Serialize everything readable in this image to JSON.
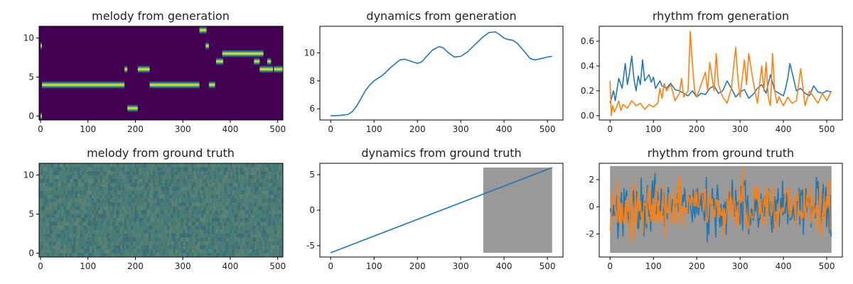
{
  "chart_data": [
    {
      "id": "melody-gen",
      "type": "heatmap",
      "title": "melody from generation",
      "xlim": [
        -3,
        511
      ],
      "ylim": [
        -0.5,
        11.5
      ],
      "xticks": [
        0,
        100,
        200,
        300,
        400,
        500
      ],
      "yticks": [
        0,
        5,
        10
      ],
      "background": "#440154",
      "note_color": "#fde725",
      "notes": [
        {
          "x0": 0,
          "x1": 3,
          "pitch": 0
        },
        {
          "x0": 0,
          "x1": 3,
          "pitch": 9
        },
        {
          "x0": 3,
          "x1": 177,
          "pitch": 4
        },
        {
          "x0": 177,
          "x1": 183,
          "pitch": 6
        },
        {
          "x0": 183,
          "x1": 205,
          "pitch": 1
        },
        {
          "x0": 205,
          "x1": 230,
          "pitch": 6
        },
        {
          "x0": 230,
          "x1": 335,
          "pitch": 4
        },
        {
          "x0": 335,
          "x1": 350,
          "pitch": 11
        },
        {
          "x0": 348,
          "x1": 355,
          "pitch": 9
        },
        {
          "x0": 355,
          "x1": 368,
          "pitch": 4
        },
        {
          "x0": 370,
          "x1": 385,
          "pitch": 7
        },
        {
          "x0": 383,
          "x1": 395,
          "pitch": 8
        },
        {
          "x0": 393,
          "x1": 470,
          "pitch": 8
        },
        {
          "x0": 450,
          "x1": 462,
          "pitch": 7
        },
        {
          "x0": 462,
          "x1": 490,
          "pitch": 6
        },
        {
          "x0": 478,
          "x1": 486,
          "pitch": 7
        },
        {
          "x0": 492,
          "x1": 511,
          "pitch": 6
        }
      ]
    },
    {
      "id": "dynamics-gen",
      "type": "line",
      "title": "dynamics from generation",
      "xlim": [
        -25,
        536
      ],
      "ylim": [
        5.2,
        11.9
      ],
      "xticks": [
        0,
        100,
        200,
        300,
        400,
        500
      ],
      "yticks": [
        6,
        8,
        10
      ],
      "series": [
        {
          "color": "#1f77b4",
          "x": [
            0,
            20,
            40,
            50,
            60,
            70,
            80,
            90,
            100,
            120,
            140,
            160,
            170,
            180,
            200,
            210,
            220,
            235,
            250,
            260,
            270,
            285,
            300,
            315,
            330,
            350,
            365,
            380,
            390,
            400,
            410,
            420,
            430,
            440,
            460,
            470,
            480,
            500,
            511
          ],
          "y": [
            5.5,
            5.52,
            5.6,
            5.8,
            6.2,
            6.75,
            7.3,
            7.7,
            8.0,
            8.4,
            9.0,
            9.5,
            9.55,
            9.45,
            9.25,
            9.35,
            9.7,
            10.2,
            10.45,
            10.35,
            10.05,
            9.7,
            9.75,
            10.05,
            10.5,
            11.1,
            11.45,
            11.5,
            11.3,
            11.05,
            10.95,
            10.9,
            10.7,
            10.35,
            9.6,
            9.5,
            9.55,
            9.7,
            9.75
          ]
        }
      ]
    },
    {
      "id": "rhythm-gen",
      "type": "line",
      "title": "rhythm from generation",
      "xlim": [
        -25,
        536
      ],
      "ylim": [
        -0.035,
        0.72
      ],
      "xticks": [
        0,
        100,
        200,
        300,
        400,
        500
      ],
      "yticks": [
        0.0,
        0.2,
        0.4,
        0.6
      ],
      "series": [
        {
          "color": "#1f77b4",
          "x": [
            0,
            8,
            12,
            20,
            28,
            35,
            40,
            45,
            50,
            55,
            60,
            65,
            70,
            75,
            80,
            90,
            95,
            100,
            105,
            110,
            115,
            120,
            130,
            140,
            150,
            160,
            170,
            180,
            190,
            200,
            210,
            220,
            230,
            240,
            250,
            260,
            270,
            280,
            290,
            300,
            310,
            320,
            330,
            340,
            350,
            360,
            370,
            380,
            390,
            400,
            405,
            410,
            415,
            420,
            430,
            440,
            450,
            460,
            470,
            480,
            490,
            500,
            511
          ],
          "y": [
            0.1,
            0.2,
            0.12,
            0.3,
            0.22,
            0.42,
            0.25,
            0.35,
            0.48,
            0.3,
            0.2,
            0.32,
            0.25,
            0.45,
            0.28,
            0.33,
            0.27,
            0.31,
            0.22,
            0.25,
            0.28,
            0.24,
            0.22,
            0.26,
            0.21,
            0.2,
            0.18,
            0.16,
            0.2,
            0.15,
            0.18,
            0.17,
            0.22,
            0.24,
            0.18,
            0.2,
            0.28,
            0.22,
            0.15,
            0.19,
            0.21,
            0.14,
            0.17,
            0.22,
            0.25,
            0.18,
            0.33,
            0.2,
            0.18,
            0.16,
            0.22,
            0.3,
            0.42,
            0.35,
            0.2,
            0.22,
            0.18,
            0.16,
            0.24,
            0.19,
            0.18,
            0.2,
            0.19
          ]
        },
        {
          "color": "#ff7f0e",
          "x": [
            0,
            3,
            6,
            10,
            15,
            20,
            25,
            30,
            40,
            50,
            60,
            70,
            80,
            90,
            100,
            110,
            115,
            120,
            125,
            130,
            140,
            150,
            160,
            165,
            170,
            180,
            185,
            190,
            195,
            200,
            210,
            220,
            225,
            230,
            240,
            245,
            250,
            260,
            270,
            280,
            290,
            295,
            300,
            310,
            315,
            320,
            330,
            340,
            350,
            355,
            360,
            365,
            370,
            375,
            380,
            385,
            390,
            400,
            410,
            420,
            430,
            440,
            450,
            460,
            470,
            480,
            490,
            500,
            511
          ],
          "y": [
            0.28,
            0.0,
            0.08,
            0.03,
            0.07,
            0.12,
            0.04,
            0.09,
            0.06,
            0.12,
            0.08,
            0.1,
            0.05,
            0.09,
            0.07,
            0.1,
            0.22,
            0.14,
            0.26,
            0.2,
            0.25,
            0.12,
            0.18,
            0.3,
            0.15,
            0.2,
            0.68,
            0.42,
            0.2,
            0.15,
            0.25,
            0.35,
            0.2,
            0.43,
            0.2,
            0.5,
            0.25,
            0.15,
            0.1,
            0.22,
            0.55,
            0.3,
            0.15,
            0.45,
            0.25,
            0.5,
            0.28,
            0.1,
            0.4,
            0.2,
            0.43,
            0.15,
            0.08,
            0.5,
            0.2,
            0.1,
            0.15,
            0.08,
            0.15,
            0.1,
            0.12,
            0.38,
            0.08,
            0.2,
            0.15,
            0.1,
            0.18,
            0.12,
            0.2
          ]
        }
      ]
    },
    {
      "id": "melody-gt",
      "type": "heatmap",
      "title": "melody from ground truth",
      "xlim": [
        -3,
        511
      ],
      "ylim": [
        -0.5,
        11.5
      ],
      "xticks": [
        0,
        100,
        200,
        300,
        400,
        500
      ],
      "yticks": [
        0,
        5,
        10
      ],
      "colors": [
        "#3e6f74",
        "#44787a",
        "#4a7f79",
        "#527d6e",
        "#5b8275"
      ]
    },
    {
      "id": "dynamics-gt",
      "type": "line",
      "title": "dynamics from ground truth",
      "xlim": [
        -25,
        536
      ],
      "ylim": [
        -6.6,
        6.6
      ],
      "xticks": [
        0,
        100,
        200,
        300,
        400,
        500
      ],
      "yticks": [
        -5,
        0,
        5
      ],
      "shaded_region": {
        "x0": 352,
        "x1": 511,
        "y0": -6,
        "y1": 6,
        "color": "#999999"
      },
      "series": [
        {
          "color": "#1f77b4",
          "x": [
            0,
            511
          ],
          "y": [
            -6,
            6
          ]
        }
      ]
    },
    {
      "id": "rhythm-gt",
      "type": "line",
      "title": "rhythm from ground truth",
      "xlim": [
        -25,
        536
      ],
      "ylim": [
        -3.7,
        3.2
      ],
      "xticks": [
        0,
        100,
        200,
        300,
        400,
        500
      ],
      "yticks": [
        -2,
        0,
        2
      ],
      "shaded_region": {
        "x0": 0,
        "x1": 511,
        "y0": -3.4,
        "y1": 3.0,
        "color": "#999999"
      },
      "series": [
        {
          "color": "#1f77b4",
          "noise_amplitude": 1.0,
          "noise_seed": 17
        },
        {
          "color": "#ff7f0e",
          "noise_amplitude": 1.0,
          "noise_seed": 91
        }
      ]
    }
  ]
}
